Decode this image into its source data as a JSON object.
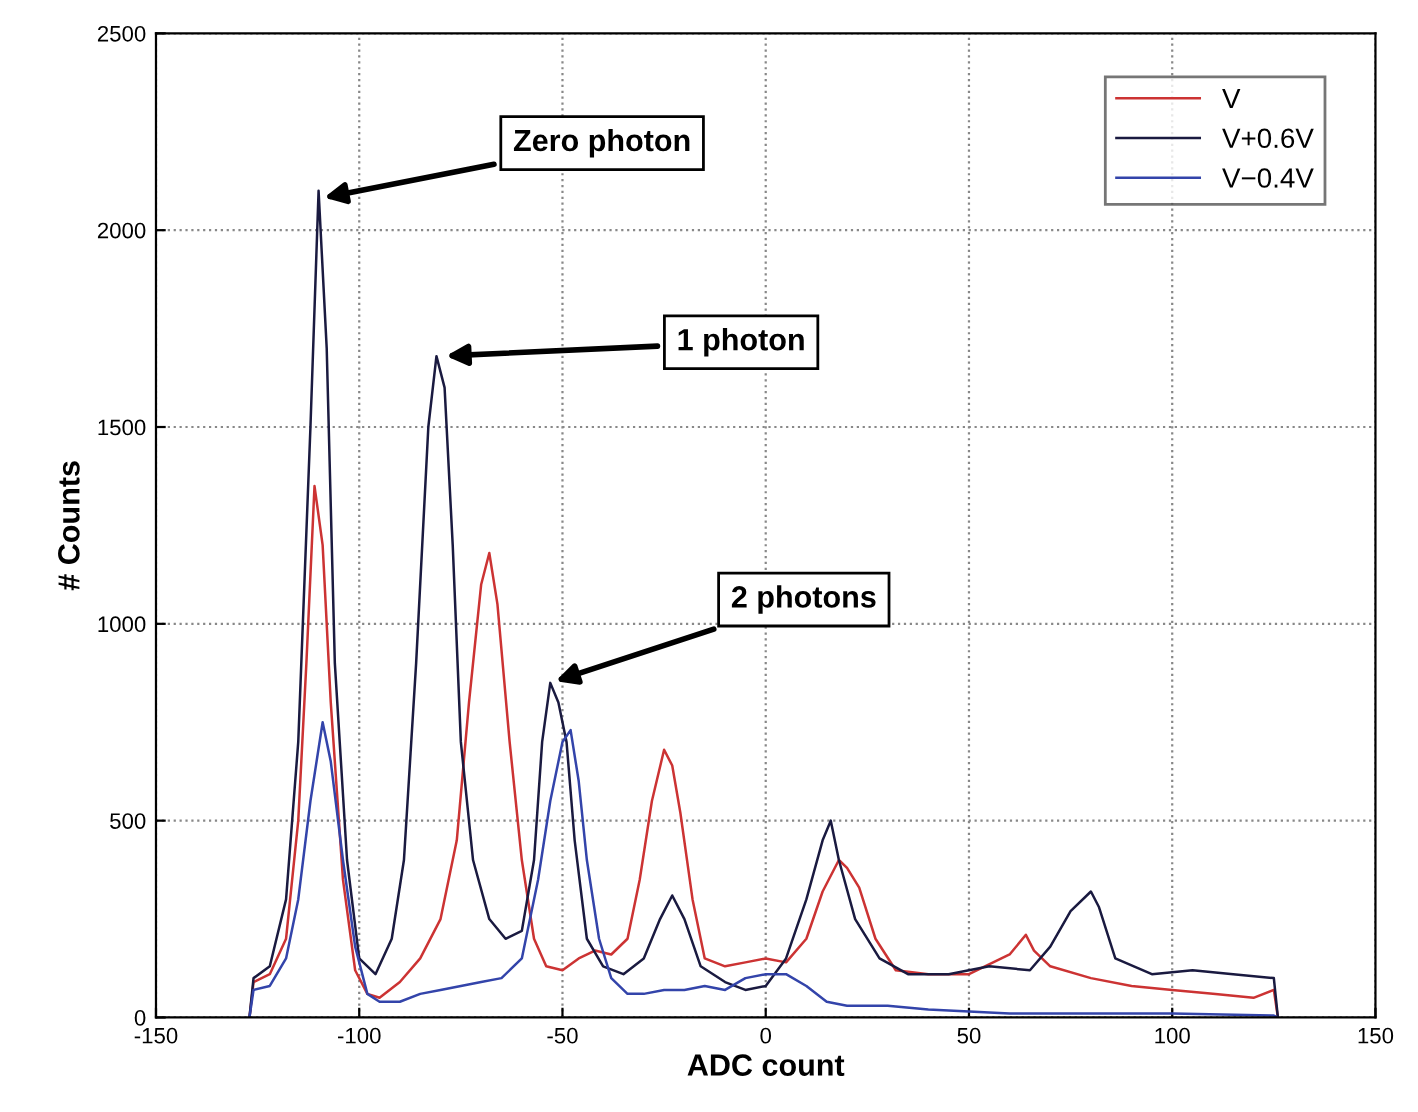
{
  "chart_data": {
    "type": "line",
    "xlabel": "ADC count",
    "ylabel": "# Counts",
    "xlim": [
      -150,
      150
    ],
    "xticks": [
      -150,
      -100,
      -50,
      0,
      50,
      100,
      150
    ],
    "ylim": [
      0,
      2500
    ],
    "yticks": [
      0,
      500,
      1000,
      1500,
      2000,
      2500
    ],
    "grid": true,
    "legend": "top right",
    "marker": "none",
    "line_style": "solid",
    "series": [
      {
        "name": "V",
        "color": "#cc3333",
        "x": [
          -127,
          -126,
          -122,
          -118,
          -115,
          -113,
          -111,
          -109,
          -107,
          -104,
          -101,
          -98,
          -95,
          -90,
          -85,
          -80,
          -76,
          -73,
          -70,
          -68,
          -66,
          -63,
          -60,
          -57,
          -54,
          -50,
          -46,
          -42,
          -38,
          -34,
          -31,
          -28,
          -25,
          -23,
          -21,
          -18,
          -15,
          -10,
          -5,
          0,
          5,
          10,
          14,
          18,
          20,
          23,
          27,
          32,
          40,
          50,
          60,
          64,
          66,
          70,
          80,
          90,
          100,
          110,
          120,
          125,
          126
        ],
        "values": [
          0,
          90,
          110,
          200,
          500,
          900,
          1350,
          1200,
          800,
          350,
          120,
          60,
          50,
          90,
          150,
          250,
          450,
          800,
          1100,
          1180,
          1050,
          700,
          400,
          200,
          130,
          120,
          150,
          170,
          160,
          200,
          350,
          550,
          680,
          640,
          520,
          300,
          150,
          130,
          140,
          150,
          140,
          200,
          320,
          400,
          380,
          330,
          200,
          120,
          110,
          110,
          160,
          210,
          170,
          130,
          100,
          80,
          70,
          60,
          50,
          70,
          0
        ]
      },
      {
        "name": "V+0.6V",
        "color": "#1a1a40",
        "x": [
          -127,
          -126,
          -122,
          -118,
          -115,
          -112,
          -110,
          -108,
          -106,
          -103,
          -100,
          -96,
          -92,
          -89,
          -86,
          -83,
          -81,
          -79,
          -77,
          -75,
          -72,
          -68,
          -64,
          -60,
          -57,
          -55,
          -53,
          -51,
          -49,
          -47,
          -44,
          -40,
          -35,
          -30,
          -26,
          -23,
          -20,
          -16,
          -10,
          -5,
          0,
          5,
          10,
          14,
          16,
          18,
          22,
          28,
          35,
          45,
          55,
          65,
          70,
          75,
          80,
          82,
          86,
          95,
          105,
          115,
          125,
          126
        ],
        "values": [
          0,
          100,
          130,
          300,
          700,
          1500,
          2100,
          1700,
          900,
          400,
          150,
          110,
          200,
          400,
          900,
          1500,
          1680,
          1600,
          1200,
          700,
          400,
          250,
          200,
          220,
          400,
          700,
          850,
          800,
          700,
          450,
          200,
          130,
          110,
          150,
          250,
          310,
          250,
          130,
          90,
          70,
          80,
          150,
          300,
          450,
          500,
          400,
          250,
          150,
          110,
          110,
          130,
          120,
          180,
          270,
          320,
          280,
          150,
          110,
          120,
          110,
          100,
          0
        ]
      },
      {
        "name": "V−0.4V",
        "color": "#3344aa",
        "x": [
          -127,
          -126,
          -122,
          -118,
          -115,
          -112,
          -109,
          -107,
          -104,
          -101,
          -98,
          -95,
          -90,
          -85,
          -80,
          -75,
          -70,
          -65,
          -60,
          -56,
          -53,
          -50,
          -48,
          -46,
          -44,
          -41,
          -38,
          -34,
          -30,
          -25,
          -20,
          -15,
          -10,
          -5,
          0,
          5,
          10,
          15,
          20,
          30,
          40,
          50,
          60,
          80,
          100,
          125,
          126
        ],
        "values": [
          0,
          70,
          80,
          150,
          300,
          550,
          750,
          650,
          400,
          180,
          60,
          40,
          40,
          60,
          70,
          80,
          90,
          100,
          150,
          350,
          550,
          700,
          730,
          600,
          400,
          200,
          100,
          60,
          60,
          70,
          70,
          80,
          70,
          100,
          110,
          110,
          80,
          40,
          30,
          30,
          20,
          15,
          10,
          10,
          10,
          5,
          0
        ]
      }
    ],
    "annotations": [
      {
        "text": "Zero photon",
        "x": -110,
        "y": 2080
      },
      {
        "text": "1 photon",
        "x": -80,
        "y": 1680
      },
      {
        "text": "2 photons",
        "x": -53,
        "y": 850
      }
    ]
  }
}
